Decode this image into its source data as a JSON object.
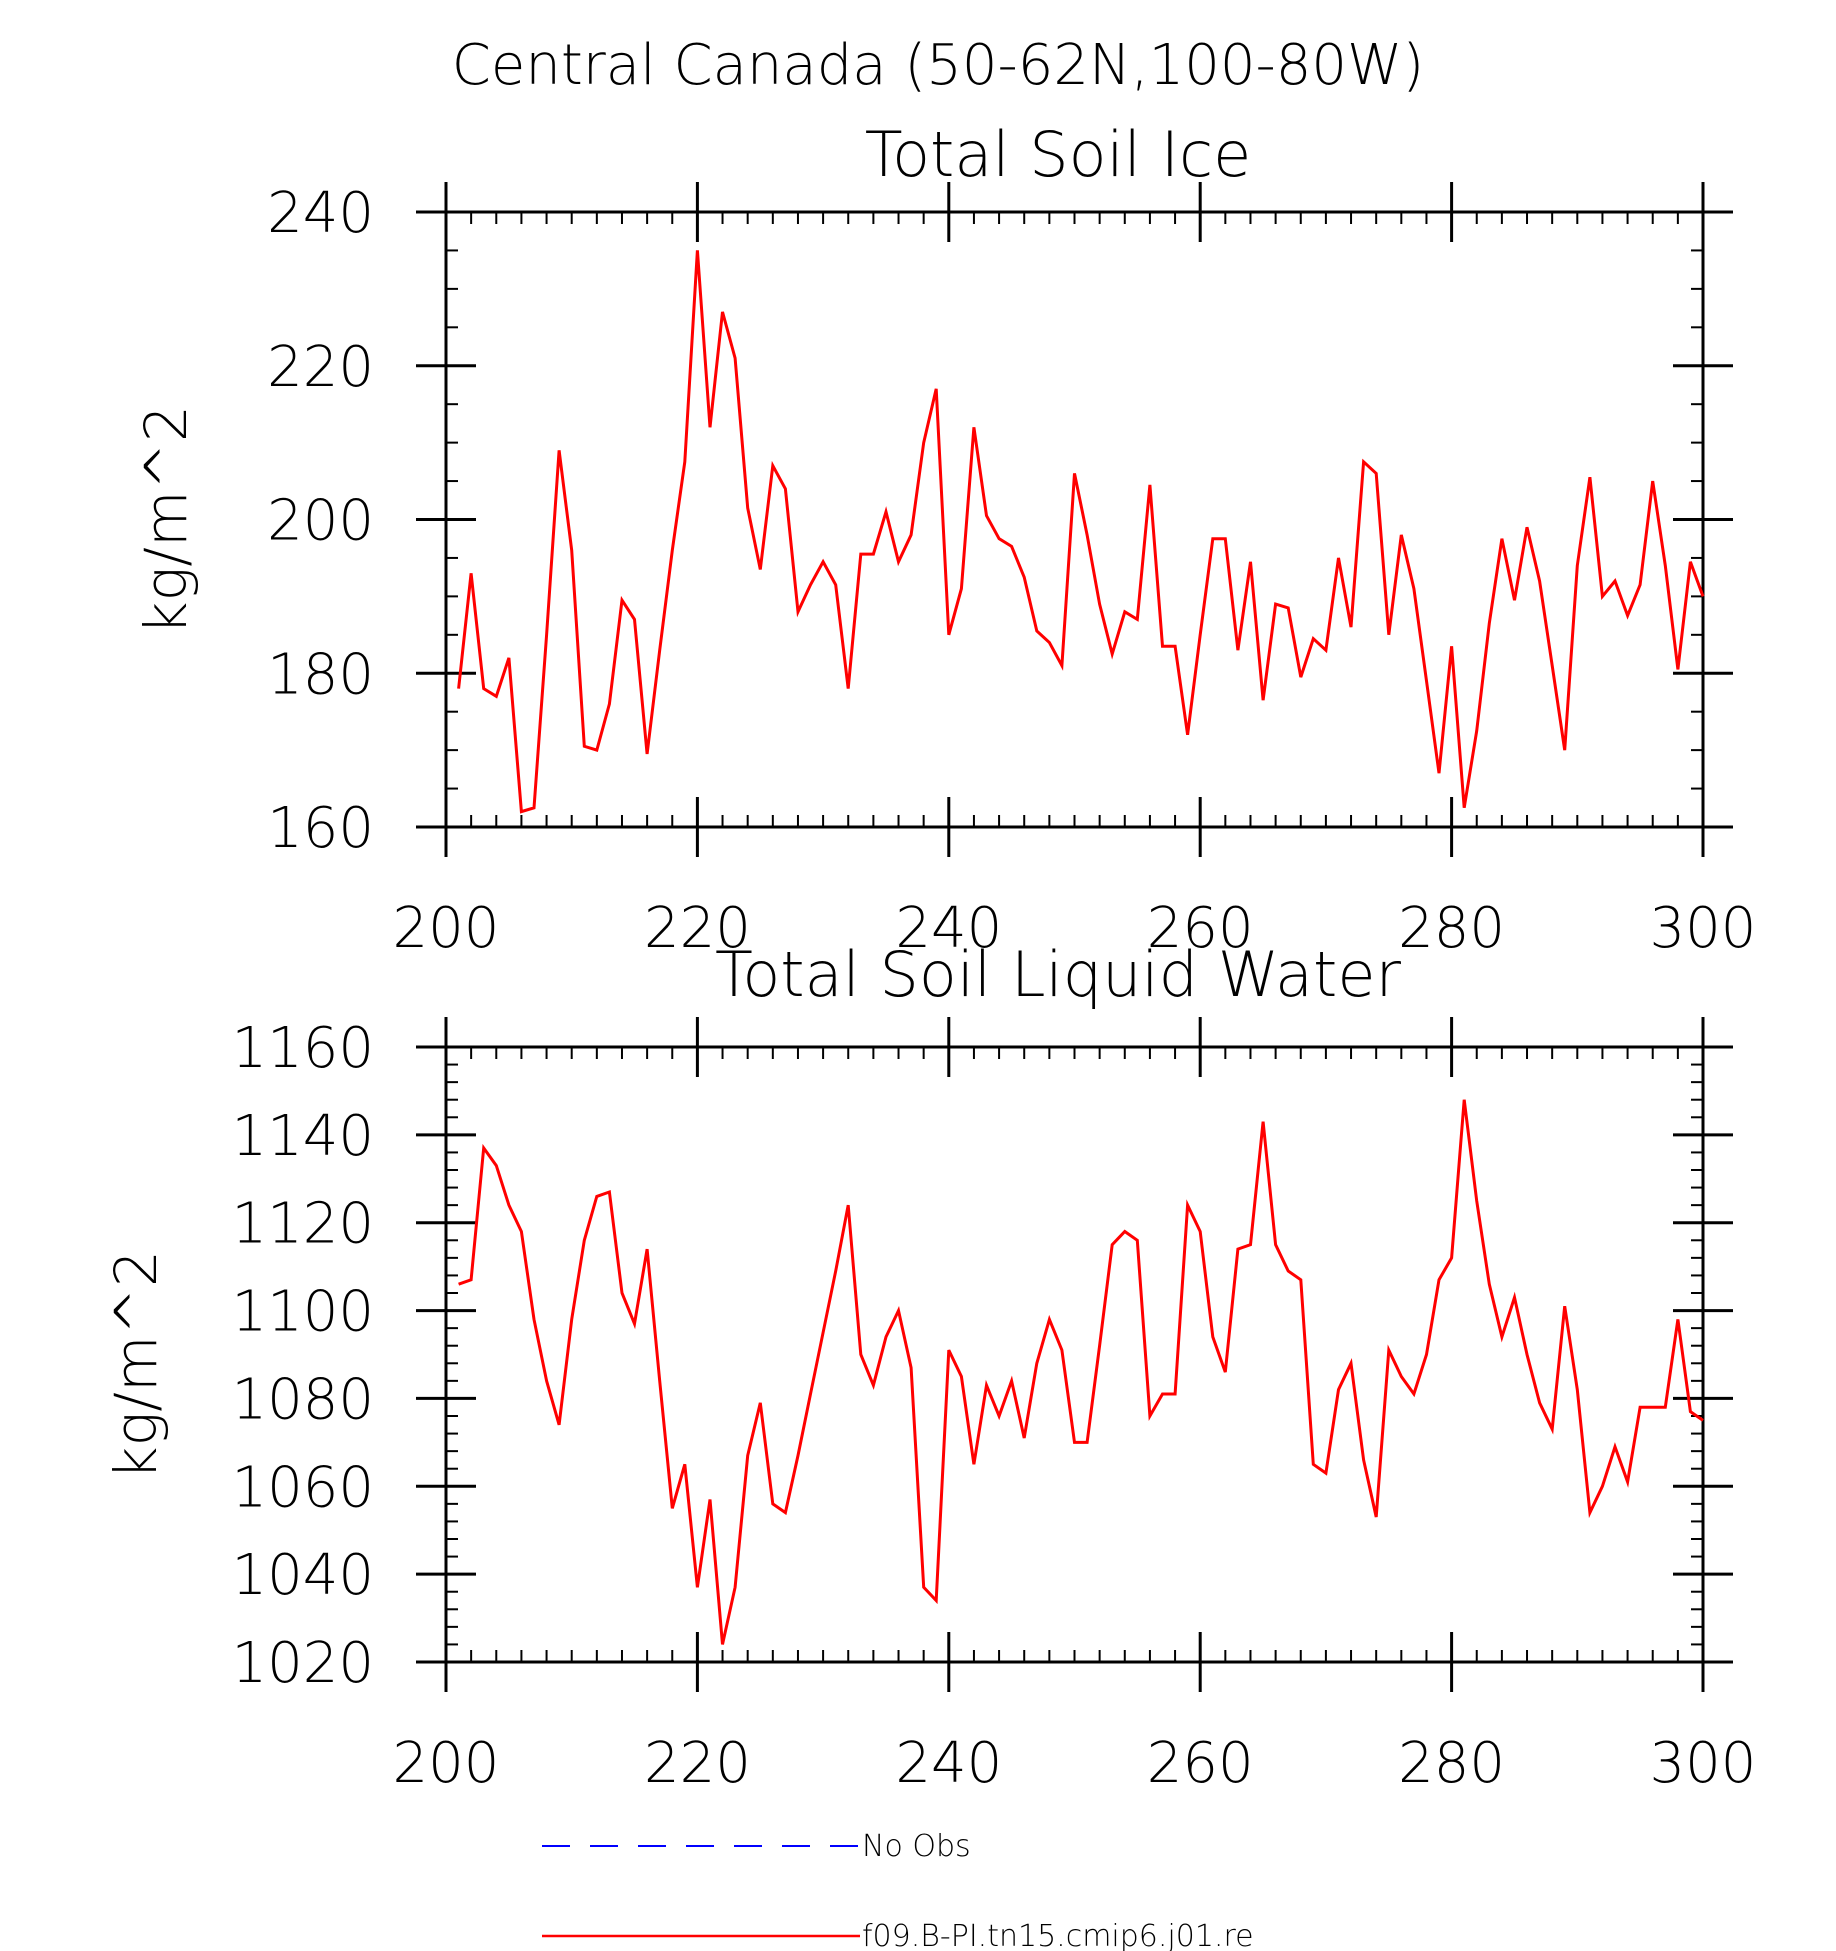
{
  "figure": {
    "title": "Central Canada (50-62N,100-80W)"
  },
  "legend": {
    "entries": [
      {
        "label": "No Obs",
        "color": "#0000ff",
        "style": "dashed"
      },
      {
        "label": "f09.B-PI.tn15.cmip6.j01.re",
        "color": "#ff0000",
        "style": "solid"
      }
    ]
  },
  "chart_data": [
    {
      "type": "line",
      "title": "Total Soil Ice",
      "xlabel": "",
      "ylabel": "kg/m^2",
      "xlim": [
        200,
        300
      ],
      "ylim": [
        160,
        240
      ],
      "x_ticks": [
        200,
        220,
        240,
        260,
        280,
        300
      ],
      "y_ticks": [
        160,
        180,
        200,
        220,
        240
      ],
      "x_minor_step": 2,
      "y_minor_step": 5,
      "grid": false,
      "series": [
        {
          "name": "f09.B-PI.tn15.cmip6.j01.re",
          "color": "#ff0000",
          "x": [
            201,
            202,
            203,
            204,
            205,
            206,
            207,
            208,
            209,
            210,
            211,
            212,
            213,
            214,
            215,
            216,
            217,
            218,
            219,
            220,
            221,
            222,
            223,
            224,
            225,
            226,
            227,
            228,
            229,
            230,
            231,
            232,
            233,
            234,
            235,
            236,
            237,
            238,
            239,
            240,
            241,
            242,
            243,
            244,
            245,
            246,
            247,
            248,
            249,
            250,
            251,
            252,
            253,
            254,
            255,
            256,
            257,
            258,
            259,
            260,
            261,
            262,
            263,
            264,
            265,
            266,
            267,
            268,
            269,
            270,
            271,
            272,
            273,
            274,
            275,
            276,
            277,
            278,
            279,
            280,
            281,
            282,
            283,
            284,
            285,
            286,
            287,
            288,
            289,
            290,
            291,
            292,
            293,
            294,
            295,
            296,
            297,
            298,
            299,
            300
          ],
          "values": [
            178,
            193,
            178,
            177,
            182,
            162,
            162.5,
            185,
            209,
            196,
            170.5,
            170,
            176,
            189.5,
            187,
            169.5,
            183,
            196,
            207.5,
            235,
            212,
            227,
            221,
            201.5,
            193.5,
            207,
            204,
            188,
            191.5,
            194.5,
            191.5,
            178,
            195.5,
            195.5,
            201,
            194.5,
            198,
            210,
            217,
            185,
            191,
            212,
            200.5,
            197.5,
            196.5,
            192.5,
            185.5,
            184,
            181,
            206,
            198,
            189,
            182.5,
            188,
            187,
            204.5,
            183.5,
            183.5,
            172,
            185,
            197.5,
            197.5,
            183,
            194.5,
            176.5,
            189,
            188.5,
            179.5,
            184.5,
            183,
            195,
            186,
            207.5,
            206,
            185,
            198,
            191,
            179,
            167,
            183.5,
            162.5,
            172.5,
            186.5,
            197.5,
            189.5,
            199,
            192,
            181,
            170,
            194,
            205.5,
            190,
            192,
            187.5,
            191.5,
            205,
            194,
            180.5,
            194.5,
            190
          ]
        }
      ]
    },
    {
      "type": "line",
      "title": "Total Soil Liquid Water",
      "xlabel": "",
      "ylabel": "kg/m^2",
      "xlim": [
        200,
        300
      ],
      "ylim": [
        1020,
        1160
      ],
      "x_ticks": [
        200,
        220,
        240,
        260,
        280,
        300
      ],
      "y_ticks": [
        1020,
        1040,
        1060,
        1080,
        1100,
        1120,
        1140,
        1160
      ],
      "x_minor_step": 2,
      "y_minor_step": 4,
      "grid": false,
      "series": [
        {
          "name": "f09.B-PI.tn15.cmip6.j01.re",
          "color": "#ff0000",
          "x": [
            201,
            202,
            203,
            204,
            205,
            206,
            207,
            208,
            209,
            210,
            211,
            212,
            213,
            214,
            215,
            216,
            217,
            218,
            219,
            220,
            221,
            222,
            223,
            224,
            225,
            226,
            227,
            228,
            229,
            230,
            231,
            232,
            233,
            234,
            235,
            236,
            237,
            238,
            239,
            240,
            241,
            242,
            243,
            244,
            245,
            246,
            247,
            248,
            249,
            250,
            251,
            252,
            253,
            254,
            255,
            256,
            257,
            258,
            259,
            260,
            261,
            262,
            263,
            264,
            265,
            266,
            267,
            268,
            269,
            270,
            271,
            272,
            273,
            274,
            275,
            276,
            277,
            278,
            279,
            280,
            281,
            282,
            283,
            284,
            285,
            286,
            287,
            288,
            289,
            290,
            291,
            292,
            293,
            294,
            295,
            296,
            297,
            298,
            299,
            300
          ],
          "values": [
            1106,
            1107,
            1137,
            1133,
            1124,
            1118,
            1098,
            1084,
            1074,
            1098,
            1116,
            1126,
            1127,
            1104,
            1097,
            1114,
            1084,
            1055,
            1065,
            1037,
            1057,
            1024,
            1037,
            1067,
            1079,
            1056,
            1054,
            1067,
            1081,
            1095,
            1109,
            1124,
            1090,
            1083,
            1094,
            1100,
            1087,
            1037,
            1034,
            1091,
            1085,
            1065,
            1083,
            1076,
            1084,
            1071,
            1088,
            1098,
            1091,
            1070,
            1070,
            1092,
            1115,
            1118,
            1116,
            1076,
            1081,
            1081,
            1124,
            1118,
            1094,
            1086,
            1114,
            1115,
            1143,
            1115,
            1109,
            1107,
            1065,
            1063,
            1082,
            1088,
            1066,
            1053,
            1091,
            1085,
            1081,
            1090,
            1107,
            1112,
            1148,
            1125,
            1106,
            1094,
            1103,
            1090,
            1079,
            1073,
            1101,
            1082,
            1054,
            1060,
            1069,
            1061,
            1078,
            1078,
            1078,
            1098,
            1077,
            1075
          ]
        }
      ]
    }
  ]
}
